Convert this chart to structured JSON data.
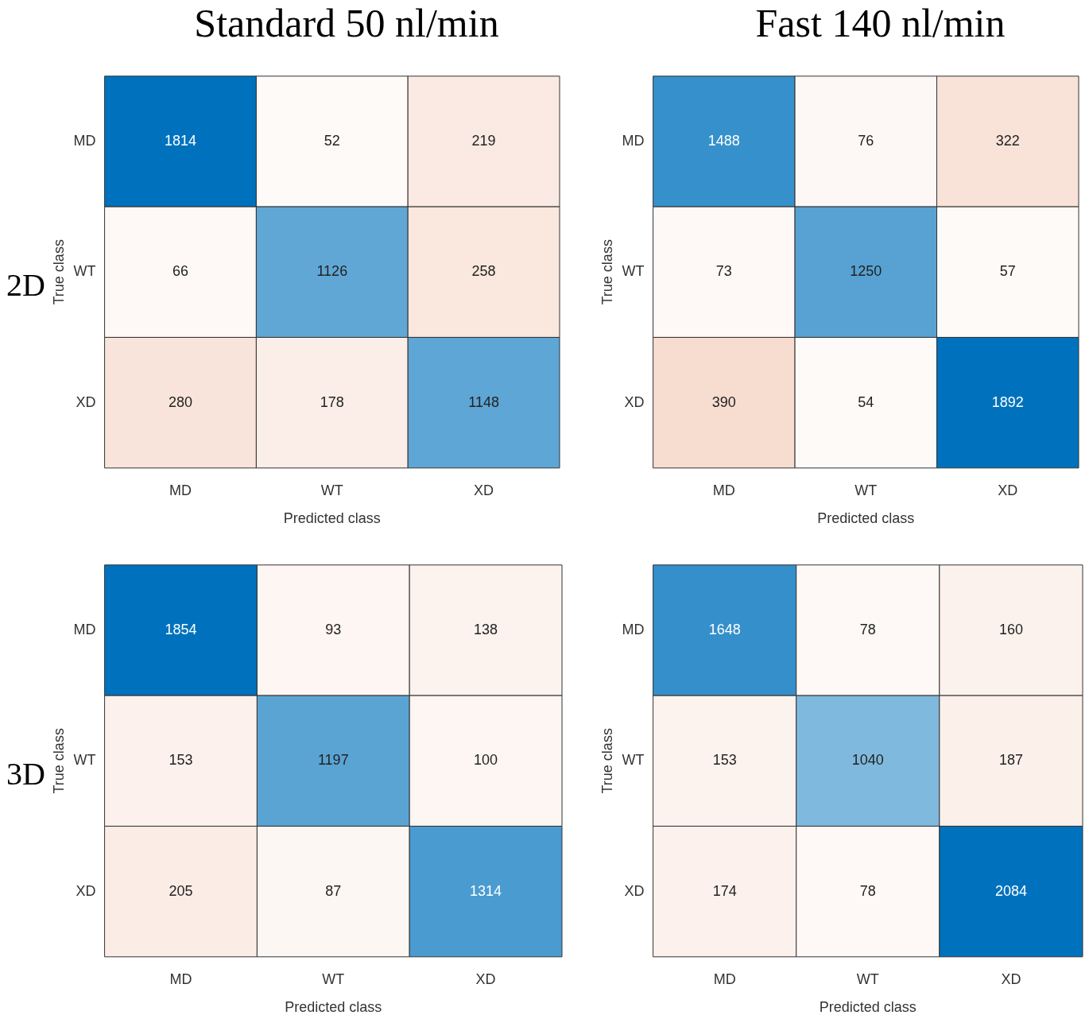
{
  "chart_data": [
    {
      "type": "heatmap",
      "title": "Standard 50 nl/min",
      "annotations": [
        "2D"
      ],
      "xlabel": "Predicted class",
      "ylabel": "True class",
      "categories": [
        "MD",
        "WT",
        "XD"
      ],
      "y_categories": [
        "MD",
        "WT",
        "XD"
      ],
      "data_labels": true,
      "cells": [
        [
          1814,
          52,
          219
        ],
        [
          66,
          1126,
          258
        ],
        [
          280,
          178,
          1148
        ]
      ]
    },
    {
      "type": "heatmap",
      "title": "Fast 140 nl/min",
      "xlabel": "Predicted class",
      "ylabel": "True class",
      "categories": [
        "MD",
        "WT",
        "XD"
      ],
      "y_categories": [
        "MD",
        "WT",
        "XD"
      ],
      "data_labels": true,
      "cells": [
        [
          1488,
          76,
          322
        ],
        [
          73,
          1250,
          57
        ],
        [
          390,
          54,
          1892
        ]
      ]
    },
    {
      "type": "heatmap",
      "annotations": [
        "3D"
      ],
      "xlabel": "Predicted class",
      "ylabel": "True class",
      "categories": [
        "MD",
        "WT",
        "XD"
      ],
      "y_categories": [
        "MD",
        "WT",
        "XD"
      ],
      "data_labels": true,
      "cells": [
        [
          1854,
          93,
          138
        ],
        [
          153,
          1197,
          100
        ],
        [
          205,
          87,
          1314
        ]
      ]
    },
    {
      "type": "heatmap",
      "xlabel": "Predicted class",
      "ylabel": "True class",
      "categories": [
        "MD",
        "WT",
        "XD"
      ],
      "y_categories": [
        "MD",
        "WT",
        "XD"
      ],
      "data_labels": true,
      "cells": [
        [
          1648,
          78,
          160
        ],
        [
          153,
          1040,
          187
        ],
        [
          174,
          78,
          2084
        ]
      ]
    }
  ]
}
